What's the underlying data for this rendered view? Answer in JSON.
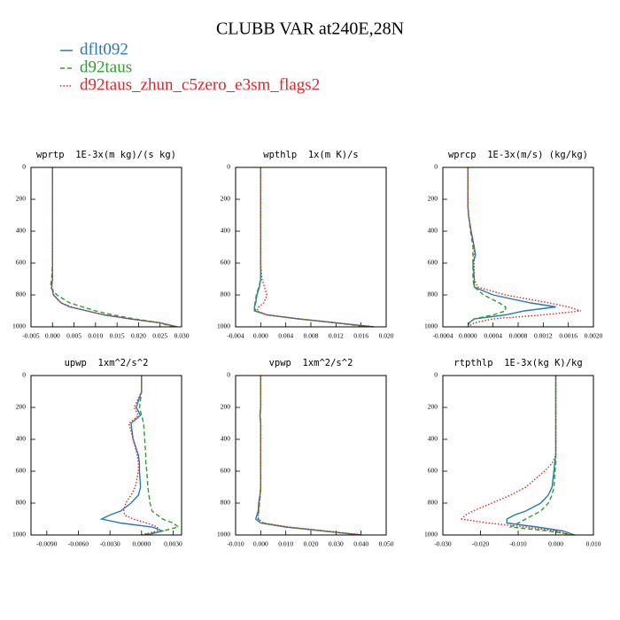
{
  "title": "CLUBB VAR at240E,28N",
  "legend": [
    {
      "name": "dflt092",
      "color": "#2878b8",
      "style": "solid"
    },
    {
      "name": "d92taus",
      "color": "#2ca02c",
      "style": "dashed"
    },
    {
      "name": "d92taus_zhun_c5zero_e3sm_flags2",
      "color": "#e0262a",
      "style": "dotted"
    }
  ],
  "chart_data": [
    {
      "type": "line",
      "title": "wprtp  1E-3x(m kg)/(s kg)",
      "y": [
        0,
        100,
        200,
        250,
        300,
        400,
        500,
        550,
        600,
        700,
        750,
        800,
        850,
        875,
        900,
        925,
        950,
        975,
        1000
      ],
      "ylim": [
        1000,
        0
      ],
      "yticks": [
        0,
        200,
        400,
        600,
        800,
        1000
      ],
      "xlim": [
        -0.005,
        0.03
      ],
      "xticks": [
        {
          "value": -0.005,
          "label": "-0.005"
        },
        {
          "value": 0,
          "label": "0.000"
        },
        {
          "value": 0.005,
          "label": "0.005"
        },
        {
          "value": 0.01,
          "label": "0.010"
        },
        {
          "value": 0.015,
          "label": "0.015"
        },
        {
          "value": 0.02,
          "label": "0.020"
        },
        {
          "value": 0.025,
          "label": "0.025"
        },
        {
          "value": 0.03,
          "label": "0.030"
        }
      ],
      "series": [
        {
          "values": [
            0,
            0,
            0,
            0,
            0,
            0,
            0,
            0,
            0,
            0,
            -0.0002,
            0.0002,
            0.002,
            0.004,
            0.008,
            0.012,
            0.018,
            0.025,
            0.029
          ]
        },
        {
          "values": [
            0,
            0,
            0,
            0,
            0,
            0,
            0,
            0,
            0,
            -0.0002,
            -0.0005,
            0.001,
            0.004,
            0.007,
            0.01,
            0.014,
            0.019,
            0.025,
            0.028
          ]
        },
        {
          "values": [
            0,
            0,
            0,
            0,
            0,
            0,
            0,
            0,
            0,
            0,
            -0.0002,
            0.0003,
            0.002,
            0.0045,
            0.008,
            0.012,
            0.018,
            0.025,
            0.029
          ]
        }
      ]
    },
    {
      "type": "line",
      "title": "wpthlp  1x(m K)/s",
      "y": [
        0,
        100,
        200,
        250,
        300,
        400,
        500,
        550,
        600,
        700,
        750,
        800,
        850,
        875,
        900,
        925,
        950,
        975,
        1000
      ],
      "ylim": [
        1000,
        0
      ],
      "yticks": [
        0,
        200,
        400,
        600,
        800,
        1000
      ],
      "xlim": [
        -0.004,
        0.02
      ],
      "xticks": [
        {
          "value": -0.004,
          "label": "-0.004"
        },
        {
          "value": 0,
          "label": "0.000"
        },
        {
          "value": 0.004,
          "label": "0.004"
        },
        {
          "value": 0.008,
          "label": "0.008"
        },
        {
          "value": 0.012,
          "label": "0.012"
        },
        {
          "value": 0.016,
          "label": "0.016"
        },
        {
          "value": 0.02,
          "label": "0.020"
        }
      ],
      "series": [
        {
          "values": [
            0,
            0,
            0,
            0,
            0,
            0,
            0,
            0,
            0,
            0,
            -0.0002,
            -0.0006,
            -0.0008,
            -0.001,
            -0.001,
            0.001,
            0.006,
            0.012,
            0.018
          ]
        },
        {
          "values": [
            0,
            0,
            0,
            0,
            0,
            0,
            0,
            0,
            0,
            0,
            -0.0003,
            -0.0007,
            -0.0009,
            -0.001,
            -0.0008,
            0.001,
            0.006,
            0.012,
            0.017
          ]
        },
        {
          "values": [
            0,
            0,
            0,
            0,
            0,
            0,
            0,
            0,
            0,
            0.0002,
            0.0006,
            0.001,
            0.0005,
            -0.0003,
            -0.0006,
            0.001,
            0.006,
            0.012,
            0.018
          ]
        }
      ]
    },
    {
      "type": "line",
      "title": "wprcp  1E-3x(m/s) (kg/kg)",
      "y": [
        0,
        100,
        200,
        250,
        300,
        400,
        500,
        550,
        600,
        700,
        750,
        800,
        850,
        875,
        900,
        925,
        950,
        975,
        1000
      ],
      "ylim": [
        1000,
        0
      ],
      "yticks": [
        0,
        200,
        400,
        600,
        800,
        1000
      ],
      "xlim": [
        -0.0004,
        0.002
      ],
      "xticks": [
        {
          "value": -0.0004,
          "label": "-0.0004"
        },
        {
          "value": 0,
          "label": "0.0000"
        },
        {
          "value": 0.0004,
          "label": "0.0004"
        },
        {
          "value": 0.0008,
          "label": "0.0008"
        },
        {
          "value": 0.0012,
          "label": "0.0012"
        },
        {
          "value": 0.0016,
          "label": "0.0016"
        },
        {
          "value": 0.002,
          "label": "0.0020"
        }
      ],
      "series": [
        {
          "values": [
            0,
            0,
            0,
            0,
            1e-05,
            5e-05,
            0.0001,
            0.00012,
            8e-05,
            0.0001,
            0.0001,
            0.0004,
            0.001,
            0.0014,
            0.0009,
            0.0006,
            0.0001,
            2e-05,
            0
          ]
        },
        {
          "values": [
            0,
            0,
            0,
            0,
            1e-05,
            4e-05,
            8e-05,
            8e-05,
            8e-05,
            8e-05,
            0.0001,
            0.00025,
            0.0005,
            0.0006,
            0.0006,
            0.0004,
            0.0001,
            2e-05,
            0
          ]
        },
        {
          "values": [
            0,
            0,
            0,
            0,
            1e-05,
            5e-05,
            0.0001,
            0.0001,
            0.0001,
            0.0001,
            0.00015,
            0.0006,
            0.0013,
            0.0016,
            0.0018,
            0.0012,
            0.0004,
            0.0001,
            0
          ]
        }
      ]
    },
    {
      "type": "line",
      "title": "upwp  1xm^2/s^2",
      "y": [
        0,
        100,
        200,
        250,
        300,
        400,
        500,
        550,
        600,
        700,
        750,
        800,
        850,
        875,
        900,
        925,
        950,
        975,
        1000
      ],
      "ylim": [
        1000,
        0
      ],
      "yticks": [
        0,
        200,
        400,
        600,
        800,
        1000
      ],
      "xlim": [
        -0.0105,
        0.0038
      ],
      "xticks": [
        {
          "value": -0.009,
          "label": "-0.0090"
        },
        {
          "value": -0.006,
          "label": "-0.0060"
        },
        {
          "value": -0.003,
          "label": "-0.0030"
        },
        {
          "value": 0,
          "label": "0.0000"
        },
        {
          "value": 0.003,
          "label": "0.0030"
        }
      ],
      "series": [
        {
          "values": [
            0,
            0,
            -0.0005,
            -0.0001,
            -0.001,
            -0.0008,
            -0.0003,
            -0.0002,
            -0.0002,
            -0.0001,
            -0.0003,
            -0.001,
            -0.002,
            -0.003,
            -0.0038,
            -0.002,
            0.001,
            0.002,
            0.0005
          ]
        },
        {
          "values": [
            0,
            0,
            -0.0002,
            0,
            0.0002,
            0.0003,
            0.0004,
            0.0004,
            0.0005,
            0.0006,
            0.0007,
            0.0008,
            0.001,
            0.0015,
            0.002,
            0.003,
            0.0035,
            0.002,
            0
          ]
        },
        {
          "values": [
            0,
            0,
            -0.0007,
            -0.0003,
            -0.0012,
            -0.0008,
            -0.0004,
            -0.0003,
            -0.0003,
            -0.0006,
            -0.001,
            -0.0015,
            -0.0017,
            -0.0016,
            -0.0008,
            0.0005,
            0.0015,
            0.0015,
            0
          ]
        }
      ]
    },
    {
      "type": "line",
      "title": "vpwp  1xm^2/s^2",
      "y": [
        0,
        100,
        200,
        250,
        300,
        400,
        500,
        550,
        600,
        700,
        750,
        800,
        850,
        875,
        900,
        925,
        950,
        975,
        1000
      ],
      "ylim": [
        1000,
        0
      ],
      "yticks": [
        0,
        200,
        400,
        600,
        800,
        1000
      ],
      "xlim": [
        -0.01,
        0.05
      ],
      "xticks": [
        {
          "value": -0.01,
          "label": "-0.010"
        },
        {
          "value": 0,
          "label": "0.000"
        },
        {
          "value": 0.01,
          "label": "0.010"
        },
        {
          "value": 0.02,
          "label": "0.020"
        },
        {
          "value": 0.03,
          "label": "0.030"
        },
        {
          "value": 0.04,
          "label": "0.040"
        },
        {
          "value": 0.05,
          "label": "0.050"
        }
      ],
      "series": [
        {
          "values": [
            0,
            0,
            0,
            -0.0003,
            0,
            0,
            0,
            0,
            0,
            0,
            -0.0003,
            -0.0008,
            -0.001,
            -0.0015,
            -0.002,
            0,
            0.01,
            0.025,
            0.04
          ]
        },
        {
          "values": [
            0,
            0,
            0,
            -0.0002,
            0,
            0,
            0,
            0,
            0,
            0,
            -0.0002,
            -0.0005,
            -0.0008,
            -0.001,
            -0.001,
            0.001,
            0.01,
            0.025,
            0.04
          ]
        },
        {
          "values": [
            0,
            0,
            0,
            -0.0003,
            0,
            0,
            0,
            0,
            0,
            0,
            -0.0002,
            -0.0005,
            -0.0008,
            -0.001,
            -0.001,
            0.001,
            0.011,
            0.026,
            0.041
          ]
        }
      ]
    },
    {
      "type": "line",
      "title": "rtpthlp  1E-3x(kg K)/kg",
      "y": [
        0,
        100,
        200,
        250,
        300,
        400,
        500,
        550,
        600,
        700,
        750,
        800,
        850,
        875,
        900,
        925,
        950,
        975,
        1000
      ],
      "ylim": [
        1000,
        0
      ],
      "yticks": [
        0,
        200,
        400,
        600,
        800,
        1000
      ],
      "xlim": [
        -0.03,
        0.01
      ],
      "xticks": [
        {
          "value": -0.03,
          "label": "-0.030"
        },
        {
          "value": -0.02,
          "label": "-0.020"
        },
        {
          "value": -0.01,
          "label": "-0.010"
        },
        {
          "value": 0,
          "label": "0.000"
        },
        {
          "value": 0.01,
          "label": "0.010"
        }
      ],
      "series": [
        {
          "values": [
            0,
            0,
            0,
            0,
            0,
            0,
            0,
            -0.0003,
            -0.0005,
            -0.001,
            -0.002,
            -0.004,
            -0.008,
            -0.011,
            -0.013,
            -0.013,
            -0.005,
            0.002,
            0.005
          ]
        },
        {
          "values": [
            0,
            0,
            0,
            0,
            0,
            0,
            0,
            0,
            -0.0002,
            -0.0005,
            -0.001,
            -0.002,
            -0.004,
            -0.006,
            -0.008,
            -0.01,
            -0.012,
            -0.002,
            0.005
          ]
        },
        {
          "values": [
            0,
            0,
            0,
            0,
            0,
            0,
            0,
            -0.001,
            -0.003,
            -0.008,
            -0.012,
            -0.017,
            -0.022,
            -0.024,
            -0.025,
            -0.018,
            -0.008,
            0,
            0.004
          ]
        }
      ]
    }
  ]
}
